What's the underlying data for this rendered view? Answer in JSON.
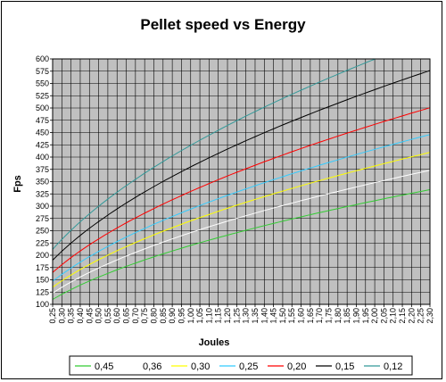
{
  "chart_data": {
    "type": "line",
    "title": "Pellet speed vs Energy",
    "xlabel": "Joules",
    "ylabel": "Fps",
    "x_tick_labels": [
      "0,25",
      "0,30",
      "0,35",
      "0,40",
      "0,45",
      "0,50",
      "0,55",
      "0,60",
      "0,65",
      "0,70",
      "0,75",
      "0,80",
      "0,85",
      "0,90",
      "0,95",
      "1,00",
      "1,05",
      "1,10",
      "1,15",
      "1,20",
      "1,25",
      "1,30",
      "1,35",
      "1,40",
      "1,45",
      "1,50",
      "1,55",
      "1,60",
      "1,65",
      "1,70",
      "1,75",
      "1,80",
      "1,85",
      "1,90",
      "1,95",
      "2,00",
      "2,05",
      "2,10",
      "2,15",
      "2,20",
      "2,25",
      "2,30"
    ],
    "y_tick_labels": [
      "100",
      "125",
      "150",
      "175",
      "200",
      "225",
      "250",
      "275",
      "300",
      "325",
      "350",
      "375",
      "400",
      "425",
      "450",
      "475",
      "500",
      "525",
      "550",
      "575",
      "600"
    ],
    "xlim": [
      0.25,
      2.3
    ],
    "ylim": [
      100,
      600
    ],
    "grid": true,
    "plot_background": "#C0C0C0",
    "legend_position": "bottom",
    "series": [
      {
        "name": "0,45",
        "color": "#33CC33",
        "x_start": 0.25,
        "x_end": 2.3,
        "y_start": 110,
        "y_end": 330
      },
      {
        "name": "0,36",
        "color": "#FFFFFF",
        "x_start": 0.25,
        "x_end": 2.3,
        "y_start": 123,
        "y_end": 371
      },
      {
        "name": "0,30",
        "color": "#FFFF00",
        "x_start": 0.25,
        "x_end": 2.3,
        "y_start": 135,
        "y_end": 404
      },
      {
        "name": "0,25",
        "color": "#33CCFF",
        "x_start": 0.25,
        "x_end": 2.3,
        "y_start": 147,
        "y_end": 446
      },
      {
        "name": "0,20",
        "color": "#FF0000",
        "x_start": 0.25,
        "x_end": 2.3,
        "y_start": 165,
        "y_end": 498
      },
      {
        "name": "0,15",
        "color": "#000000",
        "x_start": 0.25,
        "x_end": 2.3,
        "y_start": 190,
        "y_end": 576
      },
      {
        "name": "0,12",
        "color": "#339999",
        "x_start": 0.25,
        "x_end": 2.05,
        "y_start": 212,
        "y_end": 600
      }
    ]
  }
}
